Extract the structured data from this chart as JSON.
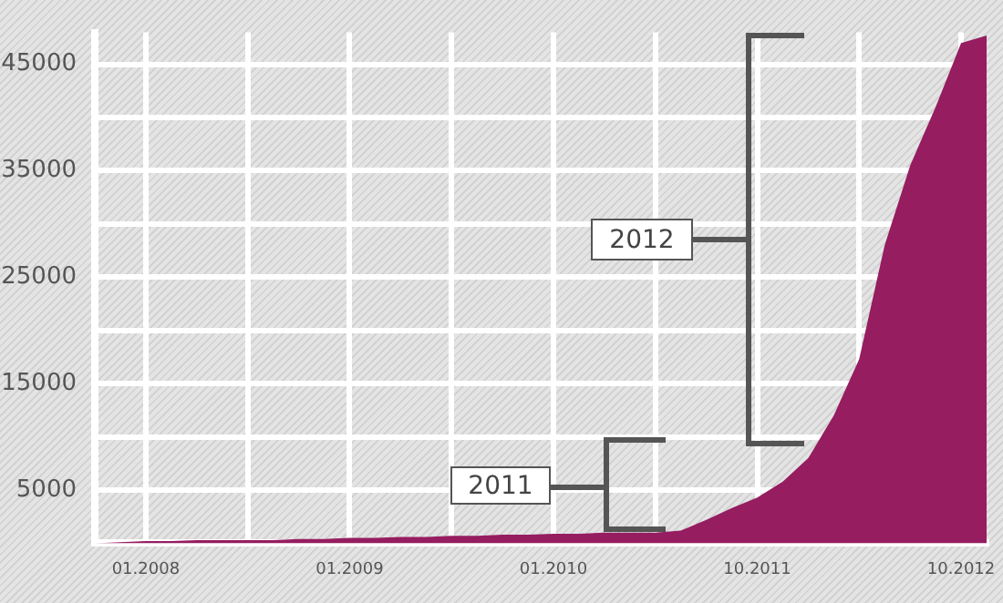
{
  "chart_data": {
    "type": "area",
    "categories": [
      null,
      null,
      "01.2008",
      null,
      null,
      null,
      null,
      null,
      null,
      null,
      "01.2009",
      null,
      null,
      null,
      null,
      null,
      null,
      null,
      "01.2010",
      null,
      null,
      null,
      null,
      null,
      null,
      null,
      "10.2011",
      null,
      null,
      null,
      null,
      null,
      null,
      null,
      "10.2012",
      null
    ],
    "series": [
      {
        "color": "#951d60",
        "values": [
          0,
          100,
          200,
          200,
          300,
          300,
          300,
          300,
          400,
          400,
          500,
          500,
          600,
          600,
          700,
          700,
          800,
          800,
          900,
          900,
          1000,
          1000,
          1000,
          1200,
          2200,
          3300,
          4300,
          5800,
          8000,
          12000,
          17300,
          28000,
          35500,
          41000,
          47000,
          47700
        ]
      }
    ],
    "ylim": [
      0,
      48000
    ],
    "yticks": [
      {
        "value": 5000,
        "label": "5000"
      },
      {
        "value": 10000,
        "label": null
      },
      {
        "value": 15000,
        "label": "15000"
      },
      {
        "value": 20000,
        "label": null
      },
      {
        "value": 25000,
        "label": "25000"
      },
      {
        "value": 30000,
        "label": null
      },
      {
        "value": 35000,
        "label": "35000"
      },
      {
        "value": 40000,
        "label": null
      },
      {
        "value": 45000,
        "label": "45000"
      }
    ],
    "grid": true,
    "legend": false,
    "marker": "none",
    "annotations": [
      "2011",
      "2012"
    ]
  }
}
